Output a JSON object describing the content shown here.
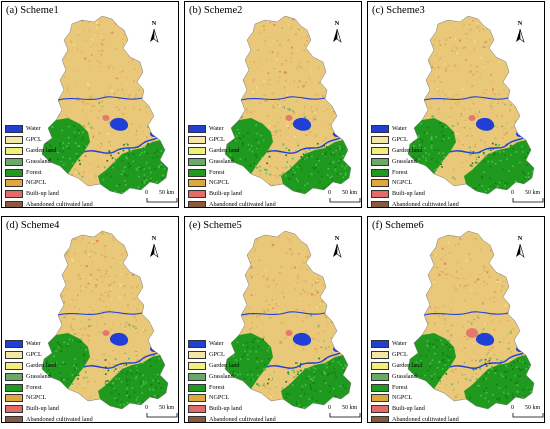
{
  "panels": [
    {
      "title": "(a) Scheme1",
      "variant": 0
    },
    {
      "title": "(b) Scheme2",
      "variant": 1
    },
    {
      "title": "(c) Scheme3",
      "variant": 2
    },
    {
      "title": "(d) Scheme4",
      "variant": 3
    },
    {
      "title": "(e) Scheme5",
      "variant": 4
    },
    {
      "title": "(f) Scheme6",
      "variant": 5
    }
  ],
  "legend": [
    {
      "label": "Water",
      "color": "#1f3fd6"
    },
    {
      "label": "GPCL",
      "color": "#f3e7a3"
    },
    {
      "label": "Garden land",
      "color": "#f2f07a"
    },
    {
      "label": "Grassland",
      "color": "#6aa86a"
    },
    {
      "label": "Forest",
      "color": "#1f9a1f"
    },
    {
      "label": "NGPCL",
      "color": "#e0a73a"
    },
    {
      "label": "Built-up land",
      "color": "#e46a6a"
    },
    {
      "label": "Abandoned cultivated land",
      "color": "#8a5a3c"
    }
  ],
  "north_label": "N",
  "scale": {
    "zero": "0",
    "distance": "50 km"
  },
  "colors": {
    "cropland_base": "#e9c879",
    "cropland_dark": "#d9a857",
    "forest": "#1f9a1f",
    "forest_dark": "#137a13",
    "water": "#1f3fd6",
    "built": "#e46a6a",
    "garden": "#f2f07a",
    "grass": "#6aa86a"
  }
}
